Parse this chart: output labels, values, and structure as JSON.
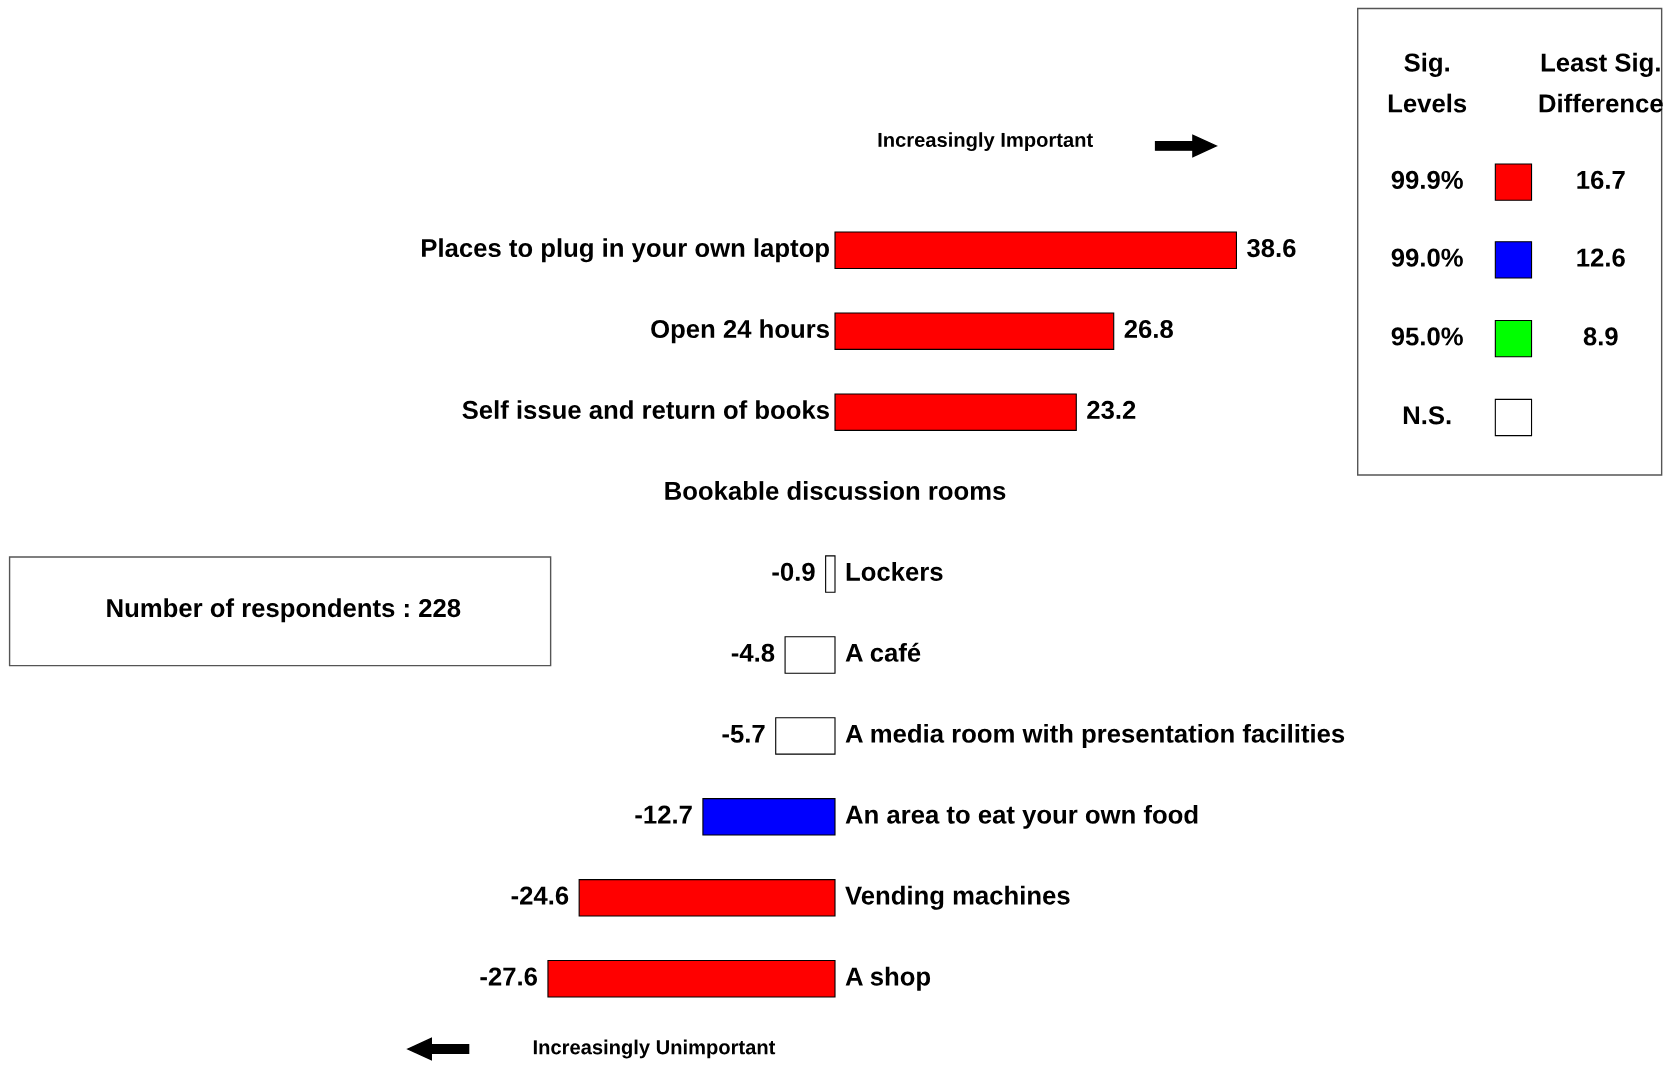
{
  "chart_data": {
    "type": "bar",
    "orientation": "horizontal",
    "legend": "top right",
    "legend_title": "Sig. Levels",
    "categories": [
      "Places to plug in your own laptop",
      "Open 24 hours",
      "Self issue and return of books",
      "Bookable discussion rooms",
      "Lockers",
      "A café",
      "A media room with presentation facilities",
      "An area to eat your own food",
      "Vending machines",
      "A shop"
    ],
    "series": [
      {
        "name": "99.9%",
        "color": "#ff0000",
        "values": [
          38.6,
          26.8,
          23.2,
          null,
          null,
          null,
          null,
          null,
          -24.6,
          -27.6
        ],
        "value_labels": [
          "38.6",
          "26.8",
          "23.2",
          null,
          null,
          null,
          null,
          null,
          "-24.6",
          "-27.6"
        ]
      },
      {
        "name": "99.0%",
        "color": "#0000ff",
        "values": [
          null,
          null,
          null,
          null,
          null,
          null,
          null,
          -12.7,
          null,
          null
        ],
        "value_labels": [
          null,
          null,
          null,
          null,
          null,
          null,
          null,
          "-12.7",
          null,
          null
        ]
      },
      {
        "name": "95.0%",
        "color": "#00ff00",
        "values": [
          null,
          null,
          null,
          null,
          null,
          null,
          null,
          null,
          null,
          null
        ],
        "value_labels": [
          null,
          null,
          null,
          null,
          null,
          null,
          null,
          null,
          null,
          null
        ]
      },
      {
        "name": "N.S.",
        "color": "#ffffff",
        "values": [
          null,
          null,
          null,
          null,
          -0.9,
          -4.8,
          -5.7,
          null,
          null,
          null
        ],
        "value_labels": [
          null,
          null,
          null,
          null,
          "-0.9",
          "-4.8",
          "-5.7",
          null,
          null,
          null
        ]
      }
    ],
    "annotations": [
      "Least Sig. Difference",
      "16.7",
      "12.6",
      "8.9",
      "Increasingly Important",
      "Increasingly Unimportant",
      "Number of respondents : 228"
    ]
  }
}
